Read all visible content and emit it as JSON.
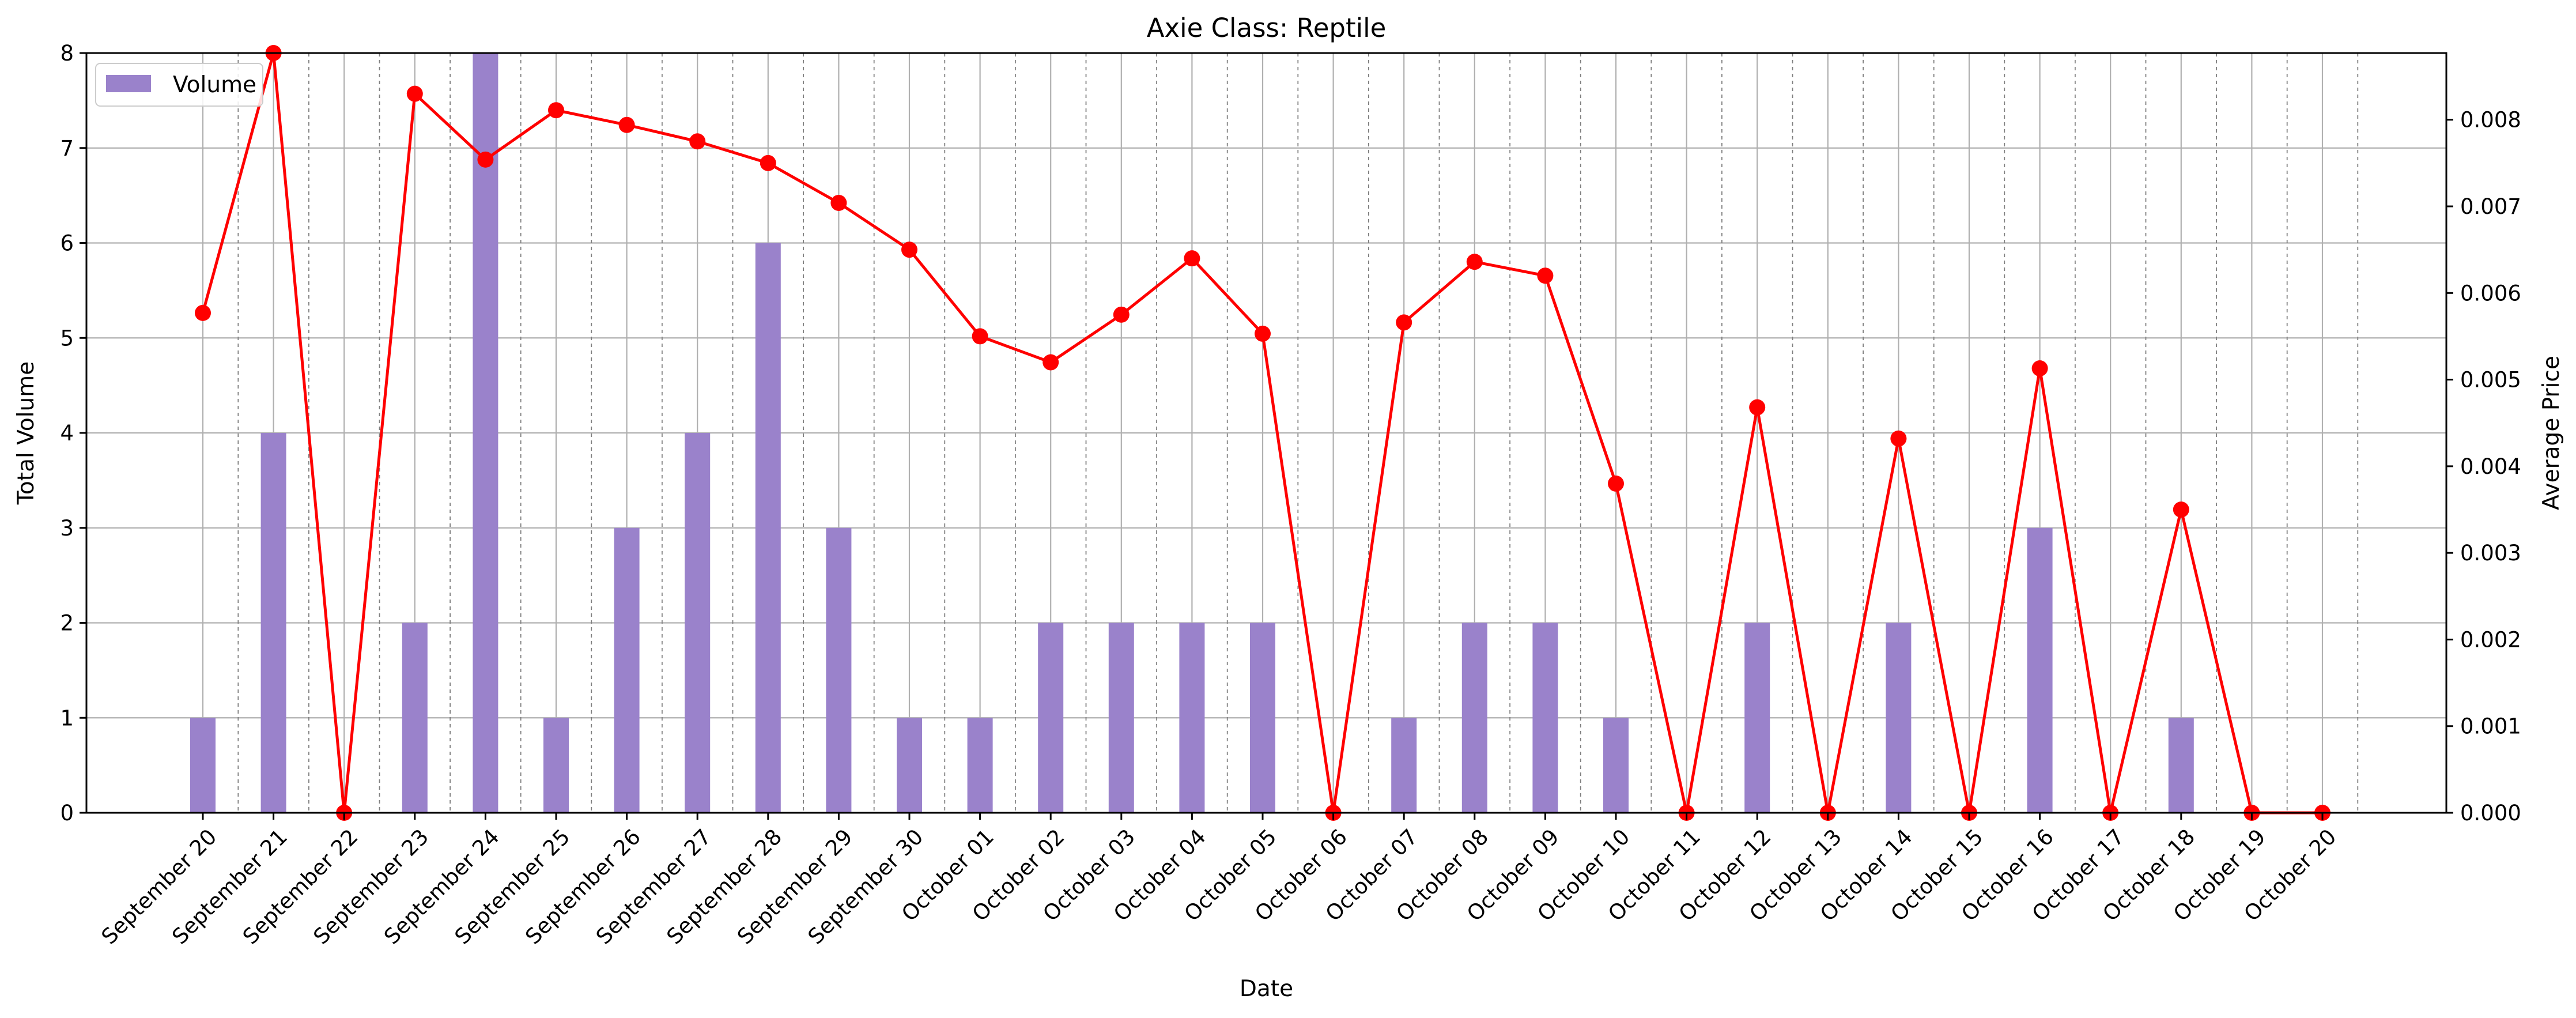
{
  "chart_data": {
    "type": "bar",
    "title": "Axie Class: Reptile",
    "xlabel": "Date",
    "ylabel": "Total Volume",
    "y2label": "Average Price",
    "categories": [
      "September 20",
      "September 21",
      "September 22",
      "September 23",
      "September 24",
      "September 25",
      "September 26",
      "September 27",
      "September 28",
      "September 29",
      "September 30",
      "October 01",
      "October 02",
      "October 03",
      "October 04",
      "October 05",
      "October 06",
      "October 07",
      "October 08",
      "October 09",
      "October 10",
      "October 11",
      "October 12",
      "October 13",
      "October 14",
      "October 15",
      "October 16",
      "October 17",
      "October 18",
      "October 19",
      "October 20"
    ],
    "ylim": [
      0,
      8
    ],
    "y2lim": [
      0,
      0.00877
    ],
    "yticks": [
      "0",
      "1",
      "2",
      "3",
      "4",
      "5",
      "6",
      "7",
      "8"
    ],
    "y2ticks": [
      "0.000",
      "0.001",
      "0.002",
      "0.003",
      "0.004",
      "0.005",
      "0.006",
      "0.007",
      "0.008"
    ],
    "grid": true,
    "legend_position": "top-left",
    "series": [
      {
        "name": "Volume",
        "type": "bar",
        "axis": "left",
        "color": "#9a82cb",
        "values": [
          1,
          4,
          0,
          2,
          8,
          1,
          3,
          4,
          6,
          3,
          1,
          1,
          2,
          2,
          2,
          2,
          0,
          1,
          2,
          2,
          1,
          0,
          2,
          0,
          2,
          0,
          3,
          0,
          1,
          0,
          0
        ]
      },
      {
        "type": "line",
        "axis": "right",
        "color": "#ff0000",
        "values": [
          0.00577,
          0.00877,
          0.0,
          0.0083,
          0.00754,
          0.00811,
          0.00794,
          0.00775,
          0.0075,
          0.00704,
          0.0065,
          0.0055,
          0.0052,
          0.00575,
          0.0064,
          0.00553,
          0.0,
          0.00566,
          0.00636,
          0.0062,
          0.0038,
          0.0,
          0.00468,
          0.0,
          0.00432,
          0.0,
          0.00513,
          0.0,
          0.0035,
          0.0,
          0.0
        ]
      }
    ]
  }
}
